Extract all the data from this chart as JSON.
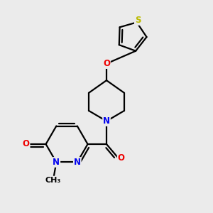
{
  "bg_color": "#ebebeb",
  "atom_colors": {
    "C": "#000000",
    "N": "#0000ee",
    "O": "#ee0000",
    "S": "#bbbb00"
  },
  "bond_color": "#000000",
  "bond_width": 1.6,
  "figsize": [
    3.0,
    3.0
  ],
  "dpi": 100,
  "xlim": [
    0,
    10
  ],
  "ylim": [
    0,
    10
  ],
  "label_fontsize": 8.5
}
